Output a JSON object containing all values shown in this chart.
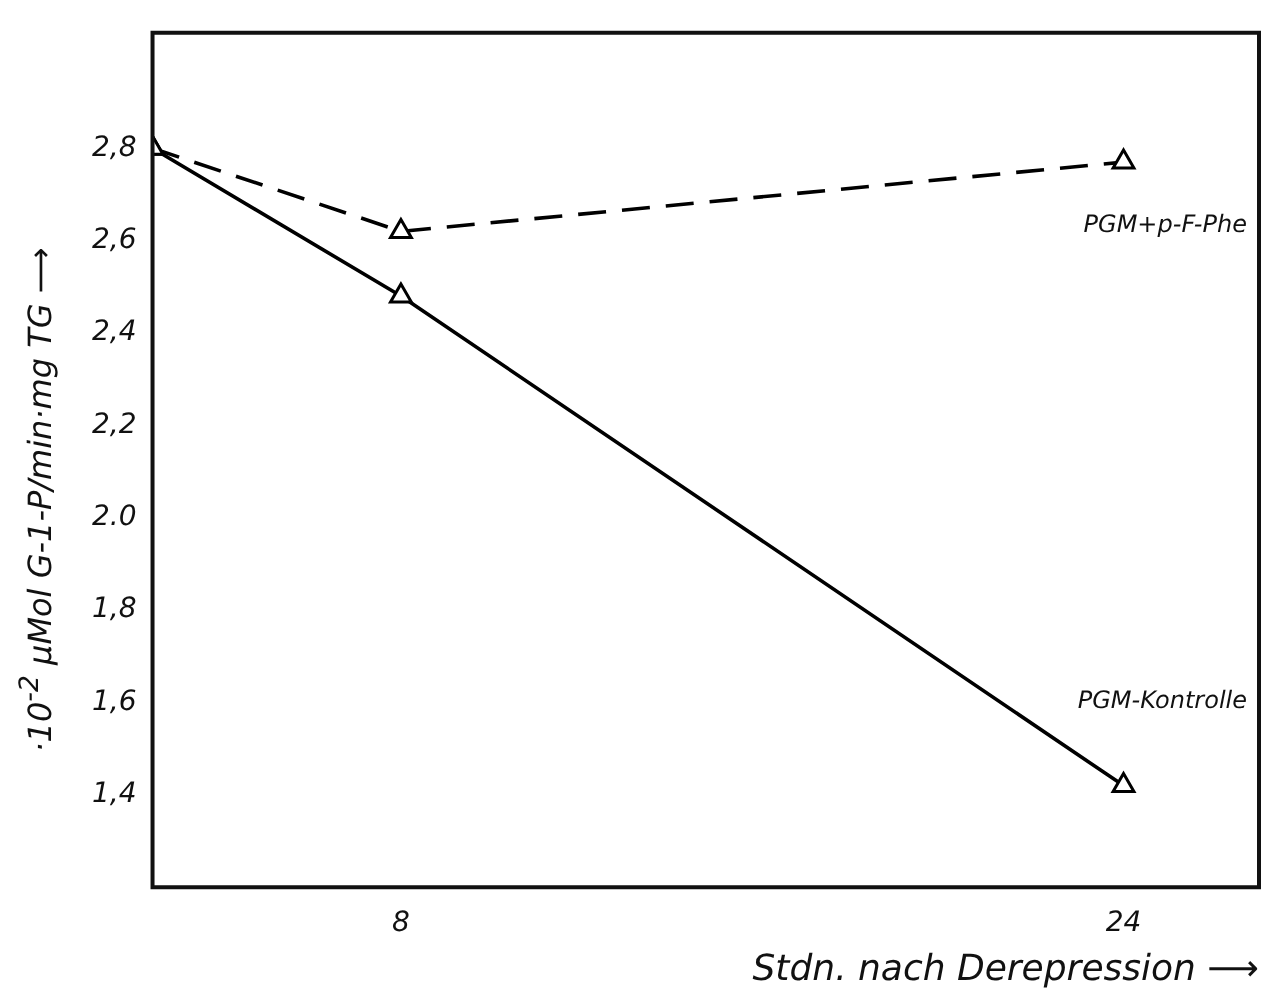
{
  "chart_data": {
    "type": "line",
    "xlabel": "Stdn. nach Derepression ⟶",
    "ylabel": "·10$^{-2}$ μMol G-1-P/min·mg TG ⟶",
    "series": [
      {
        "name": "PGM+p-F-Phe",
        "color": "#000000",
        "x": [
          2.5,
          8,
          24
        ],
        "values": [
          2.8,
          2.62,
          2.77
        ],
        "line_style": "dashed"
      },
      {
        "name": "PGM-Kontrolle",
        "color": "#000000",
        "x": [
          2.5,
          8,
          24
        ],
        "values": [
          2.8,
          2.48,
          1.42
        ],
        "line_style": "solid"
      }
    ],
    "xlim": [
      2.5,
      27
    ],
    "xticks": [
      8,
      24
    ],
    "ylim": [
      1.2,
      3.05
    ],
    "yticks": [
      {
        "value": 1.4,
        "label": "1,4"
      },
      {
        "value": 1.6,
        "label": "1,6"
      },
      {
        "value": 1.8,
        "label": "1,8"
      },
      {
        "value": 2.0,
        "label": "2.0"
      },
      {
        "value": 2.2,
        "label": "2,2"
      },
      {
        "value": 2.4,
        "label": "2,4"
      },
      {
        "value": 2.6,
        "label": "2,6"
      },
      {
        "value": 2.8,
        "label": "2,8"
      }
    ],
    "grid": false,
    "legend": false,
    "marker": "triangle"
  }
}
